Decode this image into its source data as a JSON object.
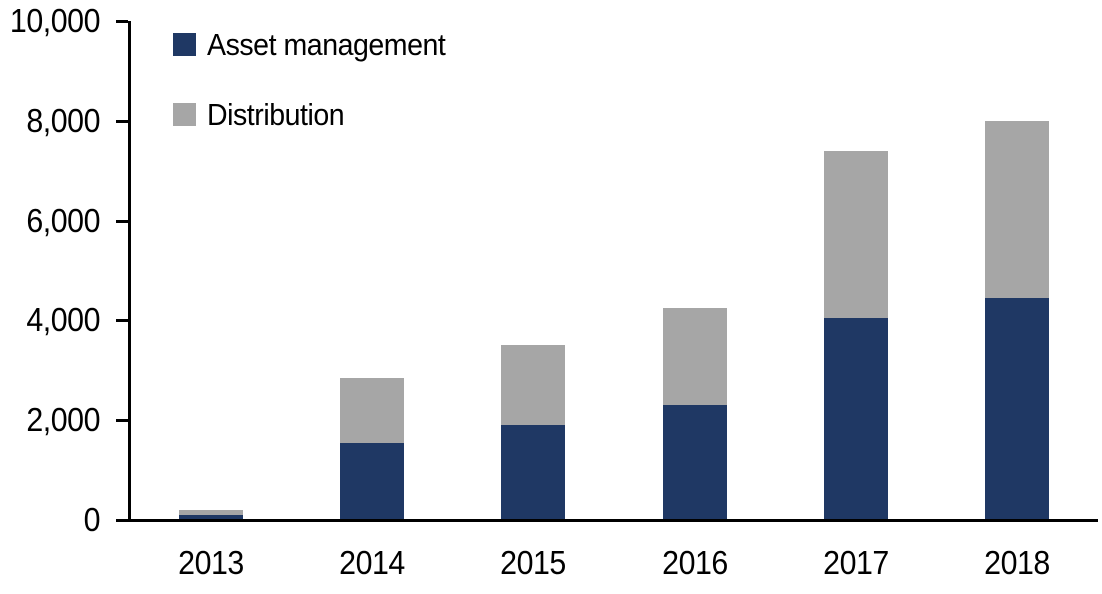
{
  "chart_data": {
    "type": "bar",
    "stacked": true,
    "title": "",
    "xlabel": "",
    "ylabel": "",
    "categories": [
      "2013",
      "2014",
      "2015",
      "2016",
      "2017",
      "2018"
    ],
    "series": [
      {
        "name": "Asset management",
        "color": "#1F3864",
        "values": [
          100,
          1550,
          1900,
          2300,
          4050,
          4450
        ]
      },
      {
        "name": "Distribution",
        "color": "#A6A6A6",
        "values": [
          100,
          1300,
          1600,
          1950,
          3350,
          3550
        ]
      }
    ],
    "totals": [
      200,
      2850,
      3500,
      4250,
      7400,
      8000
    ],
    "ylim": [
      0,
      10000
    ],
    "yticks": [
      0,
      2000,
      4000,
      6000,
      8000,
      10000
    ],
    "ytick_labels": [
      "0",
      "2,000",
      "4,000",
      "6,000",
      "8,000",
      "10,000"
    ],
    "grid": false,
    "legend_position": "top-left"
  },
  "colors": {
    "axis": "#000000",
    "background": "#FFFFFF",
    "text": "#000000"
  }
}
